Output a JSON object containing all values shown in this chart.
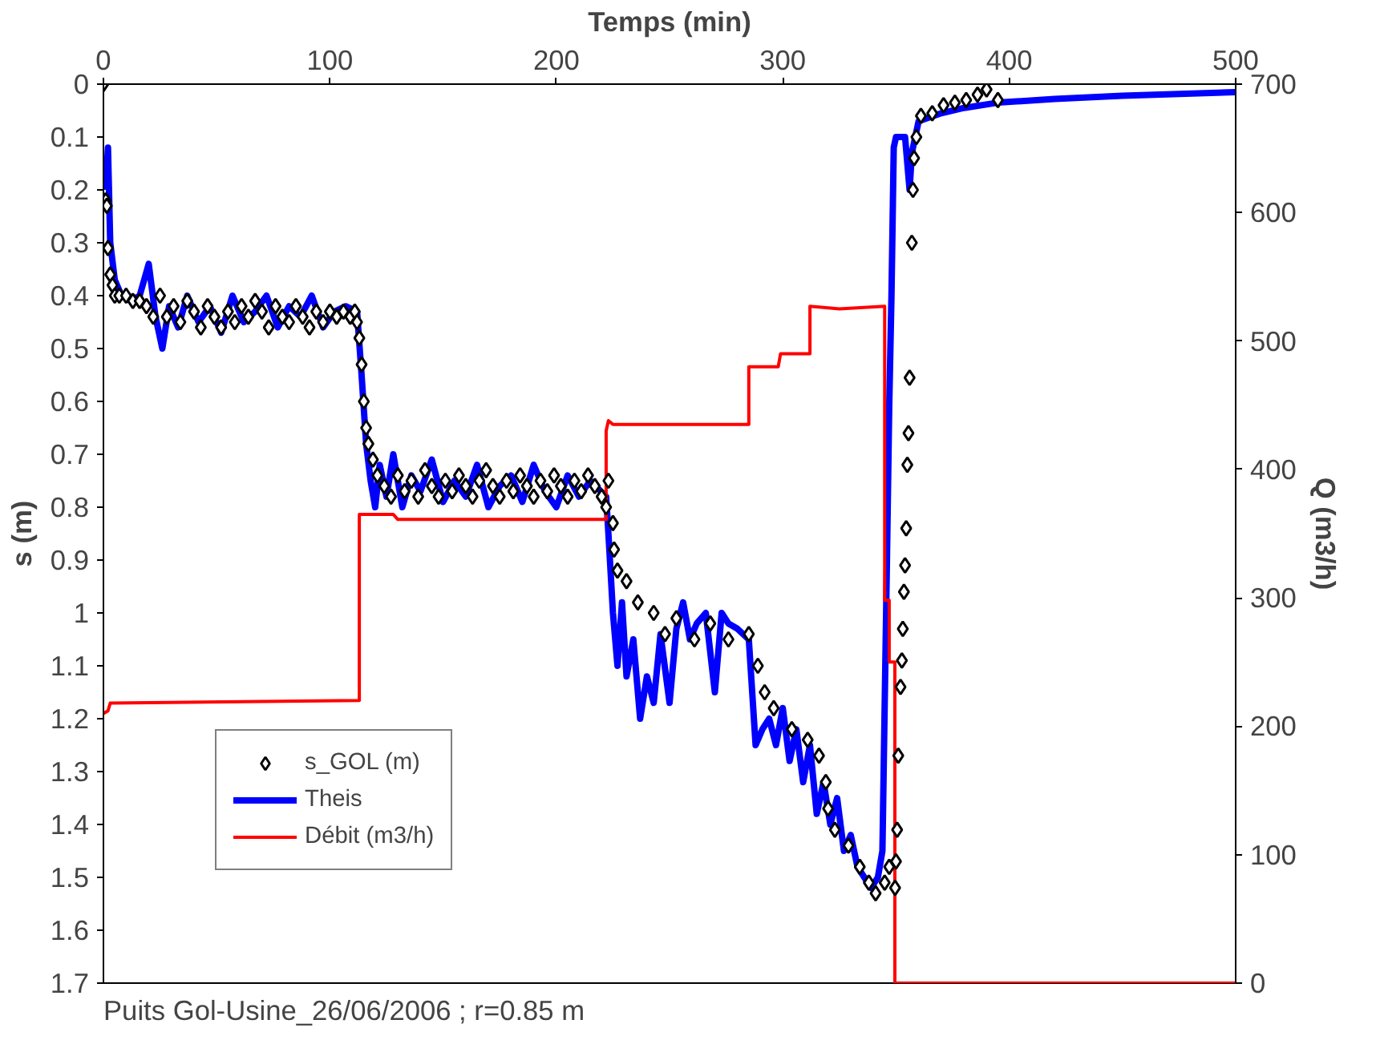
{
  "chart_data": {
    "type": "line",
    "xlabel": "Temps (min)",
    "ylabel": "s (m)",
    "y2label": "Q (m3/h)",
    "xlim": [
      0,
      500
    ],
    "xticks": [
      0,
      100,
      200,
      300,
      400,
      500
    ],
    "ylim": [
      1.7,
      0
    ],
    "yticks": [
      0,
      0.1,
      0.2,
      0.3,
      0.4,
      0.5,
      0.6,
      0.7,
      0.8,
      0.9,
      1,
      1.1,
      1.2,
      1.3,
      1.4,
      1.5,
      1.6,
      1.7
    ],
    "y2lim": [
      0,
      700
    ],
    "y2ticks": [
      0,
      100,
      200,
      300,
      400,
      500,
      600,
      700
    ],
    "legend": "bottom left",
    "grid": false,
    "annotations": [
      "Puits Gol-Usine_26/06/2006 ; r=0.85 m"
    ],
    "series": [
      {
        "name": "s_GOL (m)",
        "type": "scatter",
        "marker": "diamond",
        "color": "#000000",
        "x": [
          0,
          1,
          1.5,
          2,
          3,
          4,
          5,
          7,
          10,
          13,
          16,
          19,
          22,
          25,
          28,
          31,
          34,
          37,
          40,
          43,
          46,
          49,
          52,
          55,
          58,
          61,
          64,
          67,
          70,
          73,
          76,
          79,
          82,
          85,
          88,
          91,
          94,
          97,
          100,
          103,
          106,
          109,
          111,
          112,
          113,
          114,
          115,
          116,
          117,
          119,
          121,
          124,
          127,
          130,
          133,
          136,
          139,
          142,
          145,
          148,
          151,
          154,
          157,
          160,
          163,
          166,
          169,
          172,
          175,
          178,
          181,
          184,
          187,
          190,
          193,
          196,
          199,
          202,
          205,
          208,
          211,
          214,
          217,
          220,
          222,
          223,
          225,
          225.5,
          227,
          231,
          236,
          243,
          248,
          253,
          261,
          268,
          276,
          285,
          289,
          292,
          296,
          304,
          311,
          316,
          319,
          320,
          323,
          329,
          334,
          338,
          341,
          345,
          347,
          349.6,
          350,
          350.5,
          351,
          352,
          352.6,
          353,
          353.5,
          354,
          354.5,
          355,
          355.5,
          356,
          357,
          357.5,
          358,
          359,
          361,
          366,
          371,
          376,
          381,
          386,
          390,
          395
        ],
        "values": [
          0,
          0.22,
          0.23,
          0.31,
          0.36,
          0.38,
          0.4,
          0.4,
          0.4,
          0.41,
          0.41,
          0.42,
          0.44,
          0.4,
          0.44,
          0.42,
          0.45,
          0.41,
          0.43,
          0.46,
          0.42,
          0.44,
          0.46,
          0.43,
          0.45,
          0.42,
          0.44,
          0.41,
          0.43,
          0.46,
          0.42,
          0.44,
          0.45,
          0.42,
          0.44,
          0.46,
          0.43,
          0.45,
          0.43,
          0.44,
          0.43,
          0.44,
          0.43,
          0.45,
          0.48,
          0.53,
          0.6,
          0.65,
          0.68,
          0.71,
          0.74,
          0.76,
          0.78,
          0.74,
          0.77,
          0.75,
          0.78,
          0.73,
          0.76,
          0.78,
          0.75,
          0.77,
          0.74,
          0.76,
          0.78,
          0.75,
          0.73,
          0.76,
          0.78,
          0.75,
          0.77,
          0.74,
          0.76,
          0.78,
          0.75,
          0.77,
          0.74,
          0.76,
          0.78,
          0.75,
          0.77,
          0.74,
          0.76,
          0.78,
          0.8,
          0.75,
          0.83,
          0.88,
          0.92,
          0.94,
          0.98,
          1.0,
          1.04,
          1.01,
          1.05,
          1.02,
          1.05,
          1.04,
          1.1,
          1.15,
          1.18,
          1.22,
          1.24,
          1.27,
          1.32,
          1.37,
          1.41,
          1.44,
          1.48,
          1.51,
          1.53,
          1.51,
          1.48,
          1.52,
          1.47,
          1.41,
          1.27,
          1.14,
          1.09,
          1.03,
          0.96,
          0.91,
          0.84,
          0.72,
          0.66,
          0.555,
          0.3,
          0.2,
          0.14,
          0.1,
          0.06,
          0.055,
          0.04,
          0.035,
          0.03,
          0.02,
          0.01,
          0.03
        ]
      },
      {
        "name": "Theis",
        "line_style": "solid",
        "color": "#0000ff",
        "x": [
          1,
          2,
          3,
          5,
          8,
          12,
          16,
          20,
          23,
          26,
          29,
          33,
          37,
          42,
          47,
          52,
          57,
          62,
          67,
          72,
          77,
          82,
          87,
          92,
          97,
          102,
          107,
          112,
          114,
          116,
          118,
          120,
          122,
          125,
          128,
          132,
          136,
          140,
          145,
          150,
          155,
          160,
          165,
          170,
          175,
          180,
          185,
          190,
          195,
          200,
          205,
          210,
          215,
          222,
          223,
          225,
          227,
          229,
          231,
          234,
          237,
          240,
          243,
          246,
          250,
          253,
          256,
          259,
          262,
          266,
          270,
          273,
          276,
          280,
          285,
          288,
          291,
          294,
          297,
          300,
          303,
          306,
          309,
          312,
          315,
          318,
          321,
          324,
          327,
          330,
          333,
          336,
          339,
          342,
          344,
          346,
          347,
          348,
          349,
          350,
          354,
          356,
          357,
          360,
          370,
          380,
          395,
          420,
          450,
          500
        ],
        "values": [
          0.2,
          0.12,
          0.3,
          0.37,
          0.4,
          0.41,
          0.4,
          0.34,
          0.44,
          0.5,
          0.42,
          0.46,
          0.4,
          0.45,
          0.42,
          0.47,
          0.4,
          0.45,
          0.43,
          0.4,
          0.46,
          0.42,
          0.44,
          0.4,
          0.46,
          0.43,
          0.42,
          0.43,
          0.55,
          0.68,
          0.75,
          0.8,
          0.72,
          0.78,
          0.7,
          0.8,
          0.74,
          0.77,
          0.71,
          0.79,
          0.75,
          0.78,
          0.72,
          0.8,
          0.76,
          0.74,
          0.79,
          0.72,
          0.77,
          0.8,
          0.74,
          0.78,
          0.75,
          0.78,
          0.85,
          1.0,
          1.1,
          0.98,
          1.12,
          1.05,
          1.2,
          1.12,
          1.17,
          1.04,
          1.17,
          1.03,
          0.98,
          1.05,
          1.02,
          1.0,
          1.15,
          1.0,
          1.02,
          1.03,
          1.05,
          1.25,
          1.22,
          1.2,
          1.25,
          1.18,
          1.28,
          1.22,
          1.32,
          1.25,
          1.38,
          1.32,
          1.4,
          1.35,
          1.45,
          1.42,
          1.48,
          1.5,
          1.52,
          1.5,
          1.45,
          0.9,
          0.61,
          0.4,
          0.12,
          0.1,
          0.1,
          0.2,
          0.13,
          0.07,
          0.055,
          0.045,
          0.035,
          0.028,
          0.022,
          0.015
        ]
      },
      {
        "name": "Débit (m3/h)",
        "line_style": "solid",
        "axis": "y2",
        "color": "#ff0000",
        "x": [
          0,
          2,
          3,
          113,
          113,
          128,
          130,
          222,
          222,
          223,
          225,
          285,
          285,
          298,
          299,
          312,
          312,
          325,
          345,
          345,
          347,
          347,
          349.5,
          349.5,
          500
        ],
        "values": [
          210,
          212,
          218,
          220,
          365,
          365,
          361,
          361,
          430,
          438,
          435,
          435,
          480,
          480,
          490,
          490,
          527,
          525,
          527,
          298,
          298,
          250,
          250,
          0,
          0
        ]
      }
    ]
  }
}
